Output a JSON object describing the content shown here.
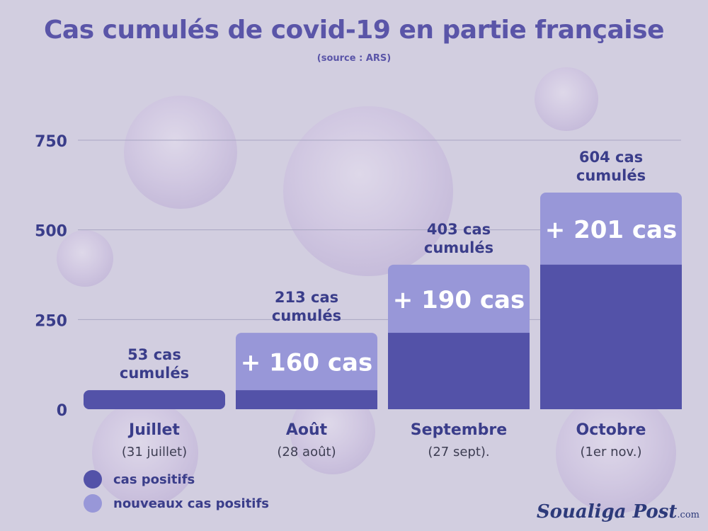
{
  "title": "Cas cumulés de covid-19 en partie française",
  "subtitle": "(source : ARS)",
  "colors": {
    "cumulative": "#5352a8",
    "new": "#9897d8",
    "text_dark": "#3a3d8a",
    "title": "#5a55a8"
  },
  "chart_data": {
    "type": "bar",
    "stacked": true,
    "title": "Cas cumulés de covid-19 en partie française",
    "categories": [
      "Juillet",
      "Août",
      "Septembre",
      "Octobre"
    ],
    "category_sublabels": [
      "(31 juillet)",
      "(28 août)",
      "(27 sept).",
      "(1er nov.)"
    ],
    "series": [
      {
        "name": "cas positifs",
        "values": [
          53,
          53,
          213,
          403
        ]
      },
      {
        "name": "nouveaux cas positifs",
        "values": [
          0,
          160,
          190,
          201
        ]
      }
    ],
    "totals": [
      53,
      213,
      403,
      604
    ],
    "total_labels": [
      [
        "53 cas",
        "cumulés"
      ],
      [
        "213 cas",
        "cumulés"
      ],
      [
        "403 cas",
        "cumulés"
      ],
      [
        "604 cas",
        "cumulés"
      ]
    ],
    "increment_labels": [
      "",
      "+  160 cas",
      "+  190 cas",
      "+  201 cas"
    ],
    "ylim": [
      0,
      750
    ],
    "yticks": [
      0,
      250,
      500,
      750
    ],
    "grid": true,
    "legend_position": "bottom-left"
  },
  "legend": {
    "items": [
      {
        "label": "cas positifs",
        "color": "#5352a8"
      },
      {
        "label": "nouveaux cas positifs",
        "color": "#9897d8"
      }
    ]
  },
  "logo": {
    "main": "Soualiga Post",
    "suffix": ".com"
  }
}
